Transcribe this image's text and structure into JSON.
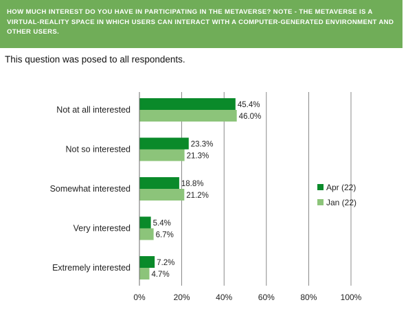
{
  "header": {
    "title": "HOW MUCH INTEREST DO YOU HAVE IN PARTICIPATING IN THE METAVERSE? NOTE - THE METAVERSE IS A VIRTUAL-REALITY SPACE IN WHICH USERS CAN INTERACT WITH A COMPUTER-GENERATED ENVIRONMENT AND OTHER USERS.",
    "subtitle": "This question was posed to all respondents."
  },
  "colors": {
    "banner": "#70ad58",
    "apr": "#0a8a2a",
    "jan": "#8cc47a",
    "grid": "#6b6b6b"
  },
  "chart_data": {
    "type": "bar",
    "orientation": "horizontal",
    "categories": [
      "Not at all interested",
      "Not so interested",
      "Somewhat interested",
      "Very interested",
      "Extremely interested"
    ],
    "series": [
      {
        "name": "Apr (22)",
        "values": [
          45.4,
          23.3,
          18.8,
          5.4,
          7.2
        ],
        "labels": [
          "45.4%",
          "23.3%",
          "18.8%",
          "5.4%",
          "7.2%"
        ]
      },
      {
        "name": "Jan (22)",
        "values": [
          46.0,
          21.3,
          21.2,
          6.7,
          4.7
        ],
        "labels": [
          "46.0%",
          "21.3%",
          "21.2%",
          "6.7%",
          "4.7%"
        ]
      }
    ],
    "xlim": [
      0,
      100
    ],
    "xticks": [
      "0%",
      "20%",
      "40%",
      "60%",
      "80%",
      "100%"
    ],
    "grid": true,
    "legend_position": "right"
  }
}
